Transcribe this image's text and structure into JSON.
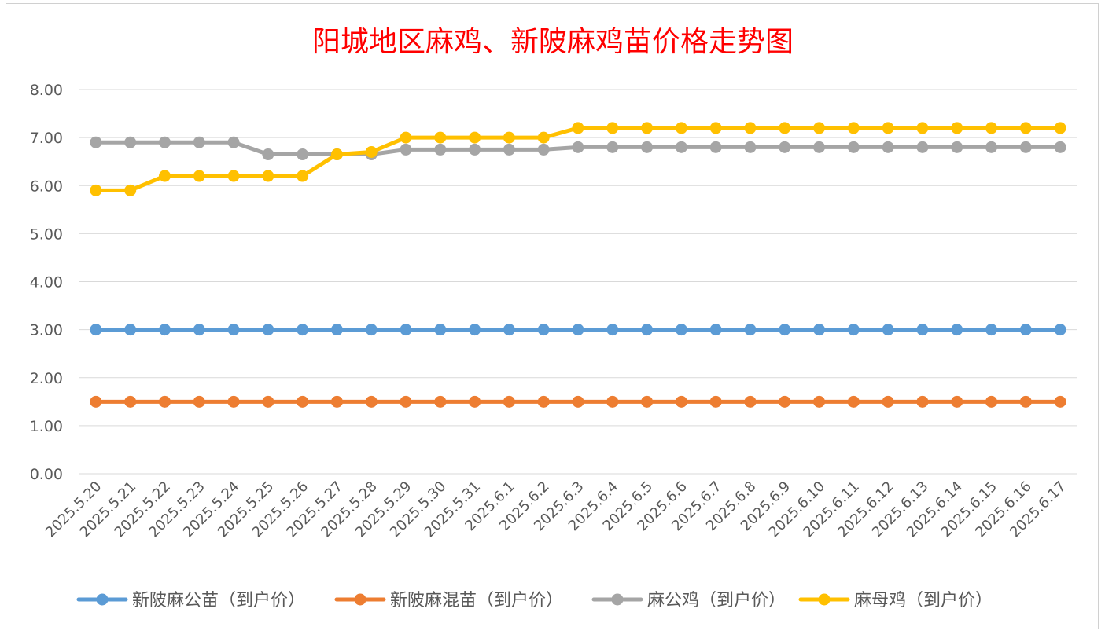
{
  "chart_data": {
    "type": "line",
    "title": "阳城地区麻鸡、新陂麻鸡苗价格走势图",
    "title_color": "#ff0000",
    "ylim": [
      0,
      8
    ],
    "y_ticks": [
      "0.00",
      "1.00",
      "2.00",
      "3.00",
      "4.00",
      "5.00",
      "6.00",
      "7.00",
      "8.00"
    ],
    "grid": true,
    "legend_position": "bottom",
    "categories": [
      "2025.5.20",
      "2025.5.21",
      "2025.5.22",
      "2025.5.23",
      "2025.5.24",
      "2025.5.25",
      "2025.5.26",
      "2025.5.27",
      "2025.5.28",
      "2025.5.29",
      "2025.5.30",
      "2025.5.31",
      "2025.6.1",
      "2025.6.2",
      "2025.6.3",
      "2025.6.4",
      "2025.6.5",
      "2025.6.6",
      "2025.6.7",
      "2025.6.8",
      "2025.6.9",
      "2025.6.10",
      "2025.6.11",
      "2025.6.12",
      "2025.6.13",
      "2025.6.14",
      "2025.6.15",
      "2025.6.16",
      "2025.6.17"
    ],
    "series": [
      {
        "name": "新陂麻公苗（到户价）",
        "color": "#5b9bd5",
        "values": [
          3,
          3,
          3,
          3,
          3,
          3,
          3,
          3,
          3,
          3,
          3,
          3,
          3,
          3,
          3,
          3,
          3,
          3,
          3,
          3,
          3,
          3,
          3,
          3,
          3,
          3,
          3,
          3,
          3
        ]
      },
      {
        "name": "新陂麻混苗（到户价）",
        "color": "#ed7d31",
        "values": [
          1.5,
          1.5,
          1.5,
          1.5,
          1.5,
          1.5,
          1.5,
          1.5,
          1.5,
          1.5,
          1.5,
          1.5,
          1.5,
          1.5,
          1.5,
          1.5,
          1.5,
          1.5,
          1.5,
          1.5,
          1.5,
          1.5,
          1.5,
          1.5,
          1.5,
          1.5,
          1.5,
          1.5,
          1.5
        ]
      },
      {
        "name": "麻公鸡（到户价）",
        "color": "#a5a5a5",
        "values": [
          6.9,
          6.9,
          6.9,
          6.9,
          6.9,
          6.65,
          6.65,
          6.65,
          6.65,
          6.75,
          6.75,
          6.75,
          6.75,
          6.75,
          6.8,
          6.8,
          6.8,
          6.8,
          6.8,
          6.8,
          6.8,
          6.8,
          6.8,
          6.8,
          6.8,
          6.8,
          6.8,
          6.8,
          6.8
        ]
      },
      {
        "name": "麻母鸡（到户价）",
        "color": "#ffc000",
        "values": [
          5.9,
          5.9,
          6.2,
          6.2,
          6.2,
          6.2,
          6.2,
          6.65,
          6.7,
          7,
          7,
          7,
          7,
          7,
          7.2,
          7.2,
          7.2,
          7.2,
          7.2,
          7.2,
          7.2,
          7.2,
          7.2,
          7.2,
          7.2,
          7.2,
          7.2,
          7.2,
          7.2
        ]
      }
    ]
  }
}
